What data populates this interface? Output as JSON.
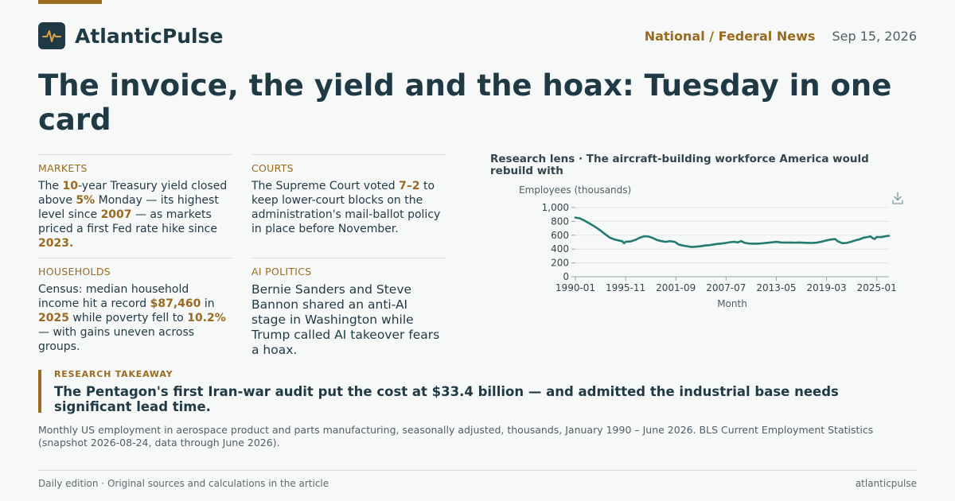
{
  "header": {
    "brand": "AtlanticPulse",
    "logo_icon": "pulse-icon",
    "section": "National / Federal News",
    "date": "Sep 15, 2026"
  },
  "headline": "The invoice, the yield and the hoax: Tuesday in one card",
  "cards": {
    "markets": {
      "label": "MARKETS",
      "parts": [
        "The ",
        "10",
        "-year Treasury yield closed above ",
        "5%",
        " Monday — its highest level since ",
        "2007",
        " — as markets priced a first Fed rate hike since ",
        "2023."
      ]
    },
    "courts": {
      "label": "COURTS",
      "parts": [
        "The Supreme Court voted ",
        "7–2",
        " to keep lower-court blocks on the administration's mail-ballot policy in place before November."
      ]
    },
    "households": {
      "label": "HOUSEHOLDS",
      "parts": [
        "Census: median household income hit a record ",
        "$87,460",
        " in ",
        "2025",
        " while poverty fell to ",
        "10.2%",
        " — with gains uneven across groups."
      ]
    },
    "ai_politics": {
      "label": "AI POLITICS",
      "text": "Bernie Sanders and Steve Bannon shared an anti-AI stage in Washington while Trump called AI takeover fears a hoax."
    }
  },
  "chart_title": "Research lens · The aircraft-building workforce America would rebuild with",
  "chart_data": {
    "type": "line",
    "title": "Research lens · The aircraft-building workforce America would rebuild with",
    "ylabel": "Employees (thousands)",
    "xlabel": "Month",
    "ylim": [
      0,
      1000
    ],
    "yticks": [
      "0",
      "200",
      "400",
      "600",
      "800",
      "1,000"
    ],
    "xticks": [
      "1990-01",
      "1995-11",
      "2001-09",
      "2007-07",
      "2013-05",
      "2019-03",
      "2025-01"
    ],
    "series": [
      {
        "color": "#237a72",
        "points": [
          [
            "1990-01",
            855
          ],
          [
            "1990-07",
            845
          ],
          [
            "1991-01",
            815
          ],
          [
            "1991-07",
            780
          ],
          [
            "1992-01",
            745
          ],
          [
            "1992-07",
            705
          ],
          [
            "1993-01",
            660
          ],
          [
            "1993-07",
            610
          ],
          [
            "1994-01",
            565
          ],
          [
            "1994-07",
            540
          ],
          [
            "1995-01",
            525
          ],
          [
            "1995-06",
            515
          ],
          [
            "1995-09",
            485
          ],
          [
            "1995-11",
            505
          ],
          [
            "1996-06",
            510
          ],
          [
            "1997-01",
            535
          ],
          [
            "1997-07",
            565
          ],
          [
            "1998-01",
            585
          ],
          [
            "1998-07",
            580
          ],
          [
            "1999-01",
            560
          ],
          [
            "1999-07",
            530
          ],
          [
            "2000-01",
            515
          ],
          [
            "2000-07",
            505
          ],
          [
            "2001-01",
            515
          ],
          [
            "2001-07",
            505
          ],
          [
            "2001-09",
            495
          ],
          [
            "2002-01",
            465
          ],
          [
            "2002-07",
            450
          ],
          [
            "2003-01",
            440
          ],
          [
            "2003-07",
            430
          ],
          [
            "2004-01",
            435
          ],
          [
            "2004-07",
            440
          ],
          [
            "2005-01",
            450
          ],
          [
            "2005-07",
            455
          ],
          [
            "2006-01",
            465
          ],
          [
            "2006-07",
            475
          ],
          [
            "2007-01",
            480
          ],
          [
            "2007-07",
            488
          ],
          [
            "2008-01",
            500
          ],
          [
            "2008-07",
            505
          ],
          [
            "2008-11",
            495
          ],
          [
            "2009-04",
            515
          ],
          [
            "2009-09",
            490
          ],
          [
            "2010-03",
            480
          ],
          [
            "2010-09",
            478
          ],
          [
            "2011-03",
            478
          ],
          [
            "2011-09",
            483
          ],
          [
            "2012-03",
            490
          ],
          [
            "2012-09",
            495
          ],
          [
            "2013-05",
            505
          ],
          [
            "2013-12",
            495
          ],
          [
            "2014-06",
            493
          ],
          [
            "2015-01",
            495
          ],
          [
            "2015-07",
            492
          ],
          [
            "2016-01",
            495
          ],
          [
            "2016-07",
            492
          ],
          [
            "2017-01",
            490
          ],
          [
            "2017-07",
            488
          ],
          [
            "2018-01",
            492
          ],
          [
            "2018-07",
            505
          ],
          [
            "2019-03",
            525
          ],
          [
            "2019-09",
            538
          ],
          [
            "2020-03",
            545
          ],
          [
            "2020-07",
            510
          ],
          [
            "2021-01",
            485
          ],
          [
            "2021-07",
            488
          ],
          [
            "2022-01",
            505
          ],
          [
            "2022-07",
            525
          ],
          [
            "2023-01",
            540
          ],
          [
            "2023-07",
            565
          ],
          [
            "2024-01",
            575
          ],
          [
            "2024-04",
            585
          ],
          [
            "2024-07",
            560
          ],
          [
            "2024-10",
            545
          ],
          [
            "2025-01",
            575
          ],
          [
            "2025-07",
            572
          ],
          [
            "2026-01",
            585
          ],
          [
            "2026-06",
            592
          ]
        ]
      }
    ]
  },
  "download_icon": "download-icon",
  "takeaway": {
    "label": "RESEARCH TAKEAWAY",
    "text": "The Pentagon's first Iran-war audit put the cost at $33.4 billion — and admitted the industrial base needs significant lead time."
  },
  "source": "Monthly US employment in aerospace product and parts manufacturing, seasonally adjusted, thousands, January 1990 – June 2026. BLS Current Employment Statistics (snapshot 2026-08-24, data through June 2026).",
  "footer": {
    "left": "Daily edition · Original sources and calculations in the article",
    "right": "atlanticpulse"
  },
  "colors": {
    "accent": "#9a6b1e",
    "ink": "#1f3a45",
    "line": "#237a72"
  }
}
